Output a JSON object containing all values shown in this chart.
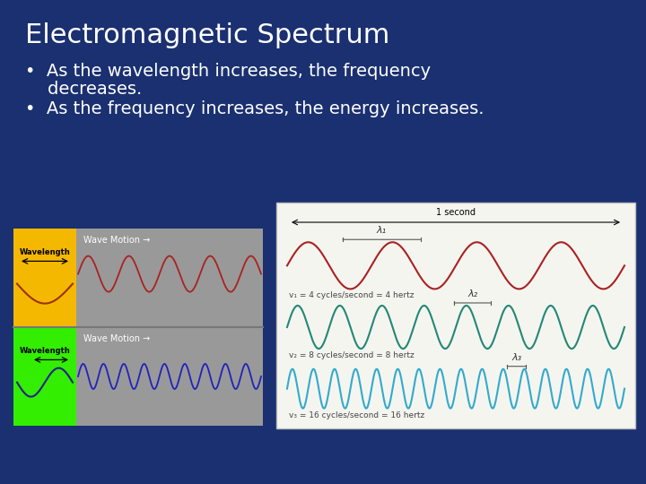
{
  "background_color": "#1a3070",
  "title": "Electromagnetic Spectrum",
  "title_color": "#ffffff",
  "title_fontsize": 22,
  "bullet1_line1": "•  As the wavelength increases, the frequency",
  "bullet1_line2": "    decreases.",
  "bullet2": "•  As the frequency increases, the energy increases.",
  "bullet_fontsize": 14,
  "bullet_color": "#ffffff",
  "yellow_bg": "#f5b800",
  "green_bg": "#33ee00",
  "gray_bg": "#999999",
  "wave1_color": "#aa2222",
  "wave2_color": "#2222bb",
  "right_wave1_color": "#aa2222",
  "right_wave2_color": "#228877",
  "right_wave3_color": "#33aacc",
  "right_image_bg": "#f5f5f0",
  "note1": "v₁ = 4 cycles/second = 4 hertz",
  "note2": "v₂ = 8 cycles/second = 8 hertz",
  "note3": "v₃ = 16 cycles/second = 16 hertz",
  "lambda1": "λ₁",
  "lambda2": "λ₂",
  "lambda3": "λ₃",
  "one_second": "1 second",
  "wave_motion": "Wave Motion →",
  "wavelength_label": "Wavelength"
}
